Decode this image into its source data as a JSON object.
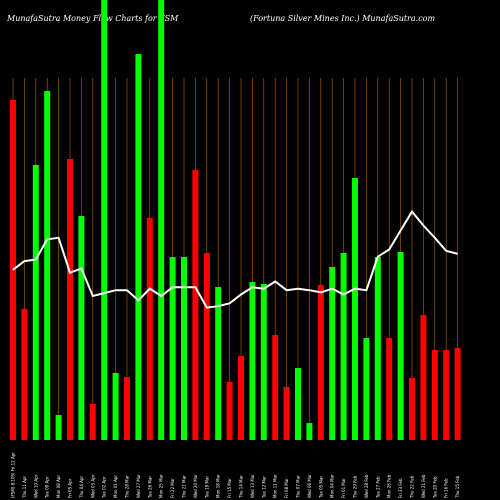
{
  "chart_data": {
    "type": "bar",
    "title": "MunafaSutra  Money Flow  Charts for FSM",
    "subtitle": "(Fortuna  Silver Mines Inc.) MunafaSutra.com",
    "categories": [
      "(FSM) 8.10%  Fri 12 Apr",
      "Thu 11 Apr",
      "Wed 10 Apr",
      "Tue 09 Apr",
      "Mon 08 Apr",
      "Fri 05 Apr",
      "Thu 04 Apr",
      "Wed 03 Apr",
      "Tue 02 Apr",
      "Mon 01 Apr",
      "Thu 28 Mar",
      "Wed 27 Mar",
      "Tue 26 Mar",
      "Mon 25 Mar",
      "Fri 22 Mar",
      "Thu 21 Mar",
      "Wed 20 Mar",
      "Tue 19 Mar",
      "Mon 18 Mar",
      "Fri 15 Mar",
      "Thu 14 Mar",
      "Wed 13 Mar",
      "Tue 12 Mar",
      "Mon 11 Mar",
      "Fri 08 Mar",
      "Thu 07 Mar",
      "Wed 06 Mar",
      "Tue 05 Mar",
      "Mon 04 Mar",
      "Fri 01 Mar",
      "Thu 29 Feb",
      "Wed 28 Feb",
      "Tue 27 Feb",
      "Mon 26 Feb",
      "Fri 23 Feb",
      "Thu 22 Feb",
      "Wed 21 Feb",
      "Tue 20 Feb",
      "Fri 16 Feb",
      "Thu 15 Feb"
    ],
    "values": [
      340,
      131,
      275,
      349,
      25,
      281,
      224,
      36,
      440,
      67,
      63,
      386,
      222,
      440,
      183,
      183,
      270,
      187,
      153,
      58,
      84,
      158,
      156,
      105,
      53,
      72,
      17,
      155,
      173,
      187,
      262,
      102,
      183,
      102,
      188,
      62,
      125,
      90,
      90,
      92
    ],
    "direction": [
      "red",
      "red",
      "green",
      "green",
      "green",
      "red",
      "green",
      "red",
      "green",
      "green",
      "red",
      "green",
      "red",
      "green",
      "green",
      "green",
      "red",
      "red",
      "green",
      "red",
      "red",
      "green",
      "green",
      "red",
      "red",
      "green",
      "green",
      "red",
      "green",
      "green",
      "green",
      "green",
      "green",
      "red",
      "green",
      "red",
      "red",
      "red",
      "red",
      "red"
    ],
    "price_line": [
      234,
      246,
      248,
      276,
      278,
      230,
      236,
      198,
      202,
      206,
      206,
      192,
      208,
      198,
      210,
      210,
      210,
      182,
      184,
      188,
      200,
      210,
      208,
      218,
      206,
      208,
      206,
      203,
      208,
      200,
      208,
      206,
      252,
      262,
      288,
      314,
      295,
      278,
      260,
      256
    ],
    "colors": {
      "up": "#00ff00",
      "down": "#ff0000",
      "line": "#ffffff",
      "grid": "#b8660b",
      "background": "#000000"
    },
    "grid": true
  }
}
